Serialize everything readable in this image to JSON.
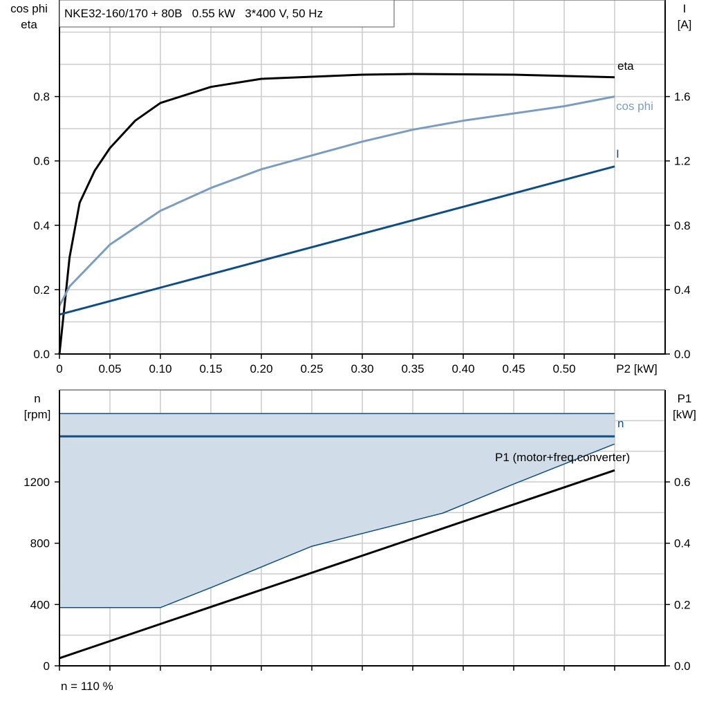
{
  "title_box": "NKE32-160/170 + 80B   0.55 kW   3*400 V, 50 Hz",
  "footer_note": "n = 110 %",
  "colors": {
    "eta": "#000000",
    "cos_phi": "#7a9dbf",
    "I": "#0f4d85",
    "n": "#0f4d85",
    "band": "#d0dce8",
    "P1": "#000000",
    "grid": "#cccccc"
  },
  "chart_data": [
    {
      "type": "line",
      "xlabel": "P2 [kW]",
      "ylabel_left": [
        "cos phi",
        "eta"
      ],
      "ylabel_right": [
        "I",
        "[A]"
      ],
      "xlim": [
        0,
        0.6
      ],
      "ylim_left": [
        0,
        1.1
      ],
      "ylim_right": [
        0,
        2.2
      ],
      "x_ticks": [
        "0",
        "0.05",
        "0.10",
        "0.15",
        "0.20",
        "0.25",
        "0.30",
        "0.35",
        "0.40",
        "0.45",
        "0.50"
      ],
      "y_ticks_left": [
        "0.0",
        "0.2",
        "0.4",
        "0.6",
        "0.8"
      ],
      "y_ticks_right": [
        "0.0",
        "0.4",
        "0.8",
        "1.2",
        "1.6"
      ],
      "grid": true,
      "series": [
        {
          "name": "eta",
          "axis": "left",
          "x": [
            0,
            0.01,
            0.02,
            0.035,
            0.05,
            0.075,
            0.1,
            0.15,
            0.2,
            0.3,
            0.35,
            0.45,
            0.55
          ],
          "y": [
            0,
            0.3,
            0.47,
            0.57,
            0.64,
            0.725,
            0.78,
            0.83,
            0.855,
            0.868,
            0.87,
            0.868,
            0.86
          ]
        },
        {
          "name": "cos phi",
          "axis": "left",
          "x": [
            0,
            0.01,
            0.05,
            0.1,
            0.15,
            0.2,
            0.3,
            0.35,
            0.4,
            0.5,
            0.55
          ],
          "y": [
            0.15,
            0.21,
            0.34,
            0.445,
            0.516,
            0.574,
            0.66,
            0.697,
            0.725,
            0.77,
            0.8
          ]
        },
        {
          "name": "I",
          "axis": "right",
          "x": [
            0,
            0.55
          ],
          "y": [
            0.245,
            1.166
          ]
        }
      ]
    },
    {
      "type": "line",
      "xlim": [
        0,
        0.6
      ],
      "ylabel_left": [
        "n",
        "[rpm]"
      ],
      "ylabel_right": [
        "P1",
        "[kW]"
      ],
      "ylim_left": [
        0,
        1800
      ],
      "ylim_right": [
        0,
        0.9
      ],
      "y_ticks_left": [
        "0",
        "400",
        "800",
        "1200"
      ],
      "y_ticks_right": [
        "0.0",
        "0.2",
        "0.4",
        "0.6"
      ],
      "grid": true,
      "band": {
        "x_upper": [
          0,
          0.55
        ],
        "upper": [
          1646,
          1646
        ],
        "x_lower": [
          0,
          0.1,
          0.15,
          0.25,
          0.38,
          0.45,
          0.55
        ],
        "lower": [
          380,
          380,
          510,
          780,
          997,
          1186,
          1448
        ]
      },
      "series": [
        {
          "name": "n",
          "axis": "left",
          "x": [
            0,
            0.55
          ],
          "y": [
            1497,
            1497
          ]
        },
        {
          "name": "P1 (motor+freq.converter)",
          "axis": "right",
          "x": [
            0,
            0.55
          ],
          "y": [
            0.025,
            0.638
          ]
        }
      ]
    }
  ]
}
